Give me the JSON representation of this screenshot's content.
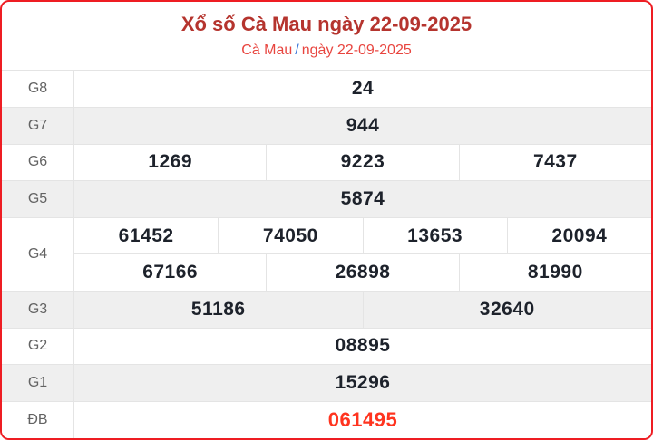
{
  "header": {
    "title": "Xổ số Cà Mau ngày 22-09-2025",
    "breadcrumb": {
      "region": "Cà Mau",
      "separator": "/",
      "date": "ngày 22-09-2025"
    }
  },
  "colors": {
    "border_red": "#ee1d23",
    "title_red": "#b5342e",
    "subtitle_red": "#e8453f",
    "slash_blue": "#3b77d8",
    "special_red": "#ff341f",
    "row_alt_bg": "#efefef",
    "label_gray": "#636363",
    "number_dark": "#1d222b",
    "cell_border": "#e4e4e4"
  },
  "table": {
    "rows": [
      {
        "label": "G8",
        "shaded": false,
        "special": false,
        "lines": [
          [
            "24"
          ]
        ]
      },
      {
        "label": "G7",
        "shaded": true,
        "special": false,
        "lines": [
          [
            "944"
          ]
        ]
      },
      {
        "label": "G6",
        "shaded": false,
        "special": false,
        "lines": [
          [
            "1269",
            "9223",
            "7437"
          ]
        ]
      },
      {
        "label": "G5",
        "shaded": true,
        "special": false,
        "lines": [
          [
            "5874"
          ]
        ]
      },
      {
        "label": "G4",
        "shaded": false,
        "special": false,
        "lines": [
          [
            "61452",
            "74050",
            "13653",
            "20094"
          ],
          [
            "67166",
            "26898",
            "81990"
          ]
        ]
      },
      {
        "label": "G3",
        "shaded": true,
        "special": false,
        "lines": [
          [
            "51186",
            "32640"
          ]
        ]
      },
      {
        "label": "G2",
        "shaded": false,
        "special": false,
        "lines": [
          [
            "08895"
          ]
        ]
      },
      {
        "label": "G1",
        "shaded": true,
        "special": false,
        "lines": [
          [
            "15296"
          ]
        ]
      },
      {
        "label": "ĐB",
        "shaded": false,
        "special": true,
        "lines": [
          [
            "061495"
          ]
        ]
      }
    ]
  }
}
